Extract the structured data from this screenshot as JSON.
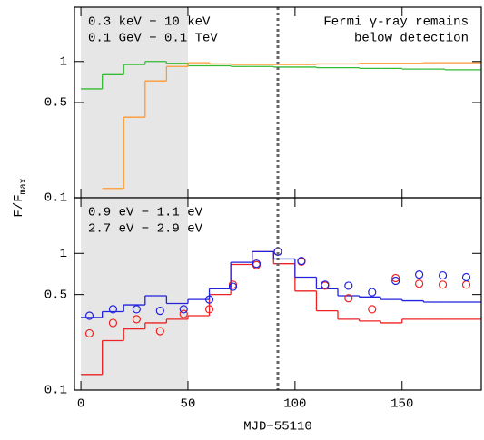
{
  "ylabel": "F/F",
  "ylabel_sub": "max",
  "chart_data": [
    {
      "type": "step",
      "log_y": true,
      "xlim": [
        -3,
        187
      ],
      "xticks": [
        0,
        50,
        100,
        150
      ],
      "show_xtick_labels": false,
      "ylim": [
        0.1,
        2.5
      ],
      "yticks": [
        0.1,
        0.5,
        1
      ],
      "shade": [
        0,
        50
      ],
      "shade_color": "#e6e6e6",
      "vline": 92,
      "annotation": [
        "Fermi γ-ray remains",
        "below detection"
      ],
      "annotation_color": "#ff9933",
      "x": [
        0,
        10,
        20,
        30,
        40,
        50,
        60,
        70,
        80,
        90,
        100,
        110,
        120,
        130,
        140,
        150,
        160,
        170,
        180
      ],
      "series": [
        {
          "name": "0.3 keV − 10  keV",
          "color": "#33bb33",
          "values": [
            0.63,
            0.8,
            0.95,
            1.0,
            0.97,
            0.93,
            0.93,
            0.92,
            0.92,
            0.91,
            0.91,
            0.9,
            0.9,
            0.89,
            0.89,
            0.88,
            0.88,
            0.87,
            0.87
          ]
        },
        {
          "name": "0.1 GeV − 0.1 TeV",
          "color": "#ff9933",
          "values": [
            null,
            0.117,
            0.39,
            0.72,
            0.92,
            0.98,
            0.96,
            0.95,
            0.95,
            0.95,
            0.95,
            0.96,
            0.96,
            0.97,
            0.97,
            0.97,
            0.98,
            0.98,
            0.98
          ]
        }
      ]
    },
    {
      "type": "step",
      "log_y": true,
      "xlim": [
        -3,
        187
      ],
      "xticks": [
        0,
        50,
        100,
        150
      ],
      "show_xtick_labels": true,
      "xlabel": "MJD−55110",
      "ylim": [
        0.1,
        2.55
      ],
      "yticks": [
        0.1,
        0.5,
        1
      ],
      "shade": [
        0,
        50
      ],
      "shade_color": "#e6e6e6",
      "vline": 92,
      "x": [
        0,
        10,
        20,
        30,
        40,
        50,
        60,
        70,
        80,
        90,
        100,
        110,
        120,
        130,
        140,
        150,
        160,
        170
      ],
      "series": [
        {
          "name": "0.9 eV − 1.1 eV",
          "color": "#ee2222",
          "values": [
            0.13,
            0.23,
            0.28,
            0.31,
            0.33,
            0.35,
            0.5,
            0.83,
            1.03,
            0.84,
            0.53,
            0.38,
            0.33,
            0.32,
            0.31,
            0.33,
            0.33,
            0.33
          ]
        },
        {
          "name": "2.7 eV − 2.9 eV",
          "color": "#2222dd",
          "values": [
            0.34,
            0.375,
            0.42,
            0.49,
            0.43,
            0.46,
            0.55,
            0.86,
            1.03,
            0.91,
            0.67,
            0.55,
            0.49,
            0.48,
            0.46,
            0.45,
            0.44,
            0.44
          ]
        },
        {
          "style": "points",
          "color": "#ee2222",
          "x": [
            4,
            15,
            26,
            37,
            48,
            60,
            71,
            82,
            92,
            103,
            114,
            125,
            136,
            147,
            158,
            169,
            180
          ],
          "values": [
            0.26,
            0.31,
            0.33,
            0.27,
            0.36,
            0.39,
            0.59,
            0.82,
            1.03,
            0.87,
            0.58,
            0.47,
            0.39,
            0.66,
            0.6,
            0.59,
            0.59
          ]
        },
        {
          "style": "points",
          "color": "#2222dd",
          "x": [
            4,
            15,
            26,
            37,
            48,
            60,
            71,
            82,
            92,
            103,
            114,
            125,
            136,
            147,
            158,
            169,
            180
          ],
          "values": [
            0.35,
            0.39,
            0.39,
            0.38,
            0.39,
            0.46,
            0.57,
            0.84,
            1.03,
            0.88,
            0.59,
            0.58,
            0.52,
            0.63,
            0.7,
            0.69,
            0.67
          ]
        }
      ]
    }
  ]
}
